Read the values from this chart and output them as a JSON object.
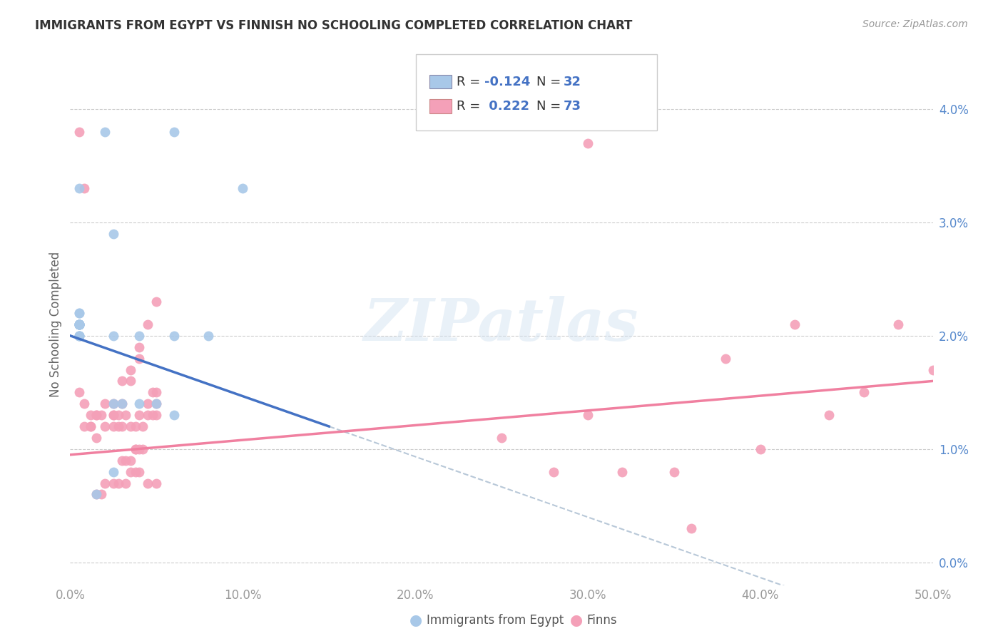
{
  "title": "IMMIGRANTS FROM EGYPT VS FINNISH NO SCHOOLING COMPLETED CORRELATION CHART",
  "source": "Source: ZipAtlas.com",
  "ylabel": "No Schooling Completed",
  "yticks": [
    "0.0%",
    "1.0%",
    "2.0%",
    "3.0%",
    "4.0%"
  ],
  "ytick_vals": [
    0.0,
    0.01,
    0.02,
    0.03,
    0.04
  ],
  "xlim": [
    0.0,
    0.5
  ],
  "ylim": [
    -0.002,
    0.044
  ],
  "legend_label1": "Immigrants from Egypt",
  "legend_label2": "Finns",
  "color_blue": "#a8c8e8",
  "color_pink": "#f4a0b8",
  "color_blue_line": "#4472c4",
  "color_pink_line": "#f080a0",
  "color_dashed": "#b8c8d8",
  "watermark": "ZIPatlas",
  "egypt_x": [
    0.02,
    0.06,
    0.1,
    0.005,
    0.025,
    0.005,
    0.005,
    0.005,
    0.005,
    0.005,
    0.005,
    0.005,
    0.005,
    0.005,
    0.005,
    0.005,
    0.005,
    0.005,
    0.005,
    0.005,
    0.005,
    0.025,
    0.04,
    0.06,
    0.08,
    0.04,
    0.05,
    0.025,
    0.06,
    0.025,
    0.015,
    0.03
  ],
  "egypt_y": [
    0.038,
    0.038,
    0.033,
    0.033,
    0.029,
    0.022,
    0.022,
    0.021,
    0.021,
    0.021,
    0.021,
    0.021,
    0.021,
    0.021,
    0.021,
    0.021,
    0.021,
    0.02,
    0.02,
    0.02,
    0.02,
    0.02,
    0.02,
    0.02,
    0.02,
    0.014,
    0.014,
    0.014,
    0.013,
    0.008,
    0.006,
    0.014
  ],
  "finns_x": [
    0.005,
    0.008,
    0.3,
    0.005,
    0.008,
    0.012,
    0.008,
    0.012,
    0.015,
    0.018,
    0.012,
    0.015,
    0.02,
    0.025,
    0.025,
    0.03,
    0.028,
    0.032,
    0.035,
    0.028,
    0.04,
    0.038,
    0.042,
    0.045,
    0.048,
    0.05,
    0.05,
    0.04,
    0.038,
    0.045,
    0.05,
    0.048,
    0.042,
    0.038,
    0.035,
    0.032,
    0.03,
    0.035,
    0.038,
    0.04,
    0.045,
    0.05,
    0.032,
    0.028,
    0.025,
    0.02,
    0.018,
    0.015,
    0.04,
    0.035,
    0.03,
    0.025,
    0.045,
    0.04,
    0.05,
    0.035,
    0.03,
    0.025,
    0.02,
    0.015,
    0.42,
    0.48,
    0.38,
    0.3,
    0.25,
    0.35,
    0.28,
    0.32,
    0.4,
    0.44,
    0.46,
    0.5,
    0.36
  ],
  "finns_y": [
    0.038,
    0.033,
    0.037,
    0.015,
    0.012,
    0.012,
    0.014,
    0.013,
    0.013,
    0.013,
    0.012,
    0.013,
    0.014,
    0.013,
    0.012,
    0.012,
    0.012,
    0.013,
    0.012,
    0.013,
    0.013,
    0.012,
    0.012,
    0.014,
    0.015,
    0.013,
    0.014,
    0.01,
    0.01,
    0.013,
    0.015,
    0.013,
    0.01,
    0.01,
    0.009,
    0.009,
    0.009,
    0.008,
    0.008,
    0.008,
    0.007,
    0.007,
    0.007,
    0.007,
    0.007,
    0.007,
    0.006,
    0.006,
    0.018,
    0.017,
    0.016,
    0.014,
    0.021,
    0.019,
    0.023,
    0.016,
    0.014,
    0.013,
    0.012,
    0.011,
    0.021,
    0.021,
    0.018,
    0.013,
    0.011,
    0.008,
    0.008,
    0.008,
    0.01,
    0.013,
    0.015,
    0.017,
    0.003
  ]
}
